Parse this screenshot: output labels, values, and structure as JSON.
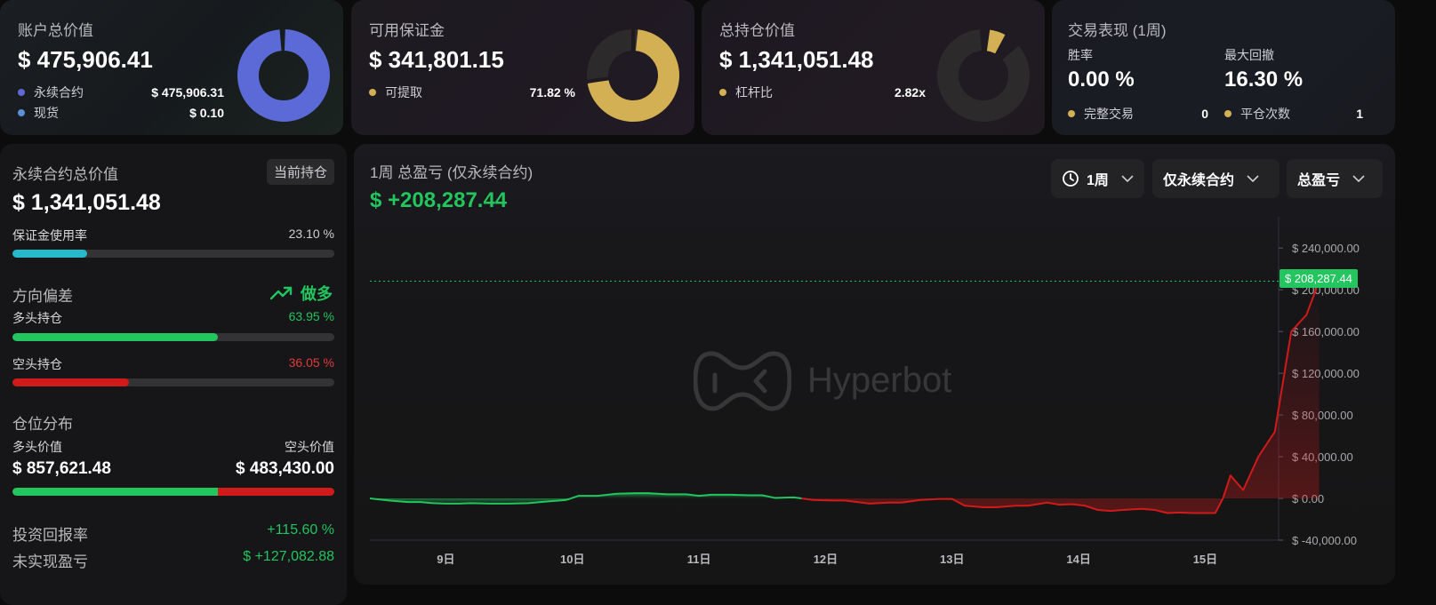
{
  "top_cards": {
    "account": {
      "title": "账户总价值",
      "value": "$ 475,906.41",
      "items": [
        {
          "label": "永续合约",
          "value": "$ 475,906.31",
          "color": "#5b6ad6"
        },
        {
          "label": "现货",
          "value": "$ 0.10",
          "color": "#5b8fd6"
        }
      ]
    },
    "margin": {
      "title": "可用保证金",
      "value": "$ 341,801.15",
      "items": [
        {
          "label": "可提取",
          "value": "71.82 %",
          "color": "#d4b054"
        }
      ],
      "withdrawable_fraction": 0.7182
    },
    "position": {
      "title": "总持仓价值",
      "value": "$ 1,341,051.48",
      "items": [
        {
          "label": "杠杆比",
          "value": "2.82x",
          "color": "#d4b054"
        }
      ]
    },
    "performance": {
      "title": "交易表现 (1周)",
      "win_rate_label": "胜率",
      "win_rate": "0.00 %",
      "drawdown_label": "最大回撤",
      "drawdown": "16.30 %",
      "complete_trades_label": "完整交易",
      "complete_trades": "0",
      "close_count_label": "平仓次数",
      "close_count": "1",
      "dot_color": "#d4b054"
    }
  },
  "left_panel": {
    "title": "永续合约总价值",
    "pill": "当前持仓",
    "value": "$ 1,341,051.48",
    "margin_usage_label": "保证金使用率",
    "margin_usage": "23.10 %",
    "margin_usage_fraction": 0.231,
    "direction_label": "方向偏差",
    "direction_value": "做多",
    "long_label": "多头持仓",
    "long_pct": "63.95 %",
    "long_fraction": 0.6395,
    "short_label": "空头持仓",
    "short_pct": "36.05 %",
    "short_fraction": 0.3605,
    "distribution_label": "仓位分布",
    "long_value_label": "多头价值",
    "short_value_label": "空头价值",
    "long_value": "$ 857,621.48",
    "short_value": "$ 483,430.00",
    "roi_label": "投资回报率",
    "roi": "+115.60 %",
    "unrealized_label": "未实现盈亏",
    "unrealized": "$ +127,082.88",
    "colors": {
      "teal": "#25b9c9",
      "green": "#22c55e",
      "red": "#d11a1a",
      "track": "#333336"
    }
  },
  "chart_panel": {
    "title": "1周 总盈亏 (仅永续合约)",
    "value": "$ +208,287.44",
    "dropdowns": [
      "1周",
      "仅永续合约",
      "总盈亏"
    ],
    "watermark": "Hyperbot",
    "price_tag": "$ 208,287.44"
  },
  "chart_data": {
    "type": "line",
    "title": "1周 总盈亏 (仅永续合约)",
    "xlabel": "",
    "ylabel": "",
    "ylim": [
      -40000,
      270000
    ],
    "y_ticks": [
      "$ 240,000.00",
      "$ 200,000.00",
      "$ 160,000.00",
      "$ 120,000.00",
      "$ 80,000.00",
      "$ 40,000.00",
      "$ 0.00",
      "$ -40,000.00"
    ],
    "y_tick_values": [
      240000,
      200000,
      160000,
      120000,
      80000,
      40000,
      0,
      -40000
    ],
    "x_ticks": [
      "9日",
      "10日",
      "11日",
      "12日",
      "13日",
      "14日",
      "15日"
    ],
    "x_tick_values": [
      9,
      10,
      11,
      12,
      13,
      14,
      15
    ],
    "xlim": [
      8.4,
      15.58
    ],
    "points": [
      [
        8.4,
        0
      ],
      [
        8.55,
        -2000
      ],
      [
        8.7,
        -3500
      ],
      [
        8.8,
        -3500
      ],
      [
        8.9,
        -4500
      ],
      [
        9.0,
        -5000
      ],
      [
        9.1,
        -5000
      ],
      [
        9.2,
        -4500
      ],
      [
        9.35,
        -5000
      ],
      [
        9.5,
        -5000
      ],
      [
        9.65,
        -4500
      ],
      [
        9.8,
        -3000
      ],
      [
        9.95,
        -1500
      ],
      [
        10.05,
        2500
      ],
      [
        10.2,
        2500
      ],
      [
        10.35,
        4500
      ],
      [
        10.5,
        5000
      ],
      [
        10.6,
        5000
      ],
      [
        10.75,
        4000
      ],
      [
        10.9,
        4000
      ],
      [
        11.0,
        2500
      ],
      [
        11.1,
        3500
      ],
      [
        11.25,
        3500
      ],
      [
        11.4,
        3000
      ],
      [
        11.5,
        3000
      ],
      [
        11.6,
        500
      ],
      [
        11.75,
        1000
      ],
      [
        11.9,
        -1500
      ],
      [
        12.05,
        -2000
      ],
      [
        12.15,
        -2000
      ],
      [
        12.25,
        -3500
      ],
      [
        12.35,
        -5000
      ],
      [
        12.5,
        -4000
      ],
      [
        12.6,
        -4000
      ],
      [
        12.75,
        -1500
      ],
      [
        12.9,
        -500
      ],
      [
        13.0,
        -500
      ],
      [
        13.1,
        -7000
      ],
      [
        13.25,
        -8500
      ],
      [
        13.35,
        -8500
      ],
      [
        13.5,
        -7000
      ],
      [
        13.6,
        -7000
      ],
      [
        13.75,
        -4000
      ],
      [
        13.85,
        -6000
      ],
      [
        13.95,
        -5500
      ],
      [
        14.05,
        -7000
      ],
      [
        14.15,
        -11000
      ],
      [
        14.25,
        -12000
      ],
      [
        14.35,
        -11000
      ],
      [
        14.5,
        -10000
      ],
      [
        14.6,
        -11000
      ],
      [
        14.7,
        -14000
      ],
      [
        14.8,
        -13500
      ],
      [
        14.9,
        -14000
      ],
      [
        15.0,
        -14000
      ],
      [
        15.08,
        -14000
      ],
      [
        15.14,
        0
      ],
      [
        15.2,
        22000
      ],
      [
        15.3,
        8000
      ],
      [
        15.42,
        40000
      ],
      [
        15.55,
        64000
      ],
      [
        15.68,
        160000
      ],
      [
        15.8,
        176000
      ],
      [
        15.9,
        208287.44
      ]
    ],
    "last_value": 208287.44,
    "colors": {
      "up": "#22c55e",
      "down": "#d11a1a"
    }
  }
}
